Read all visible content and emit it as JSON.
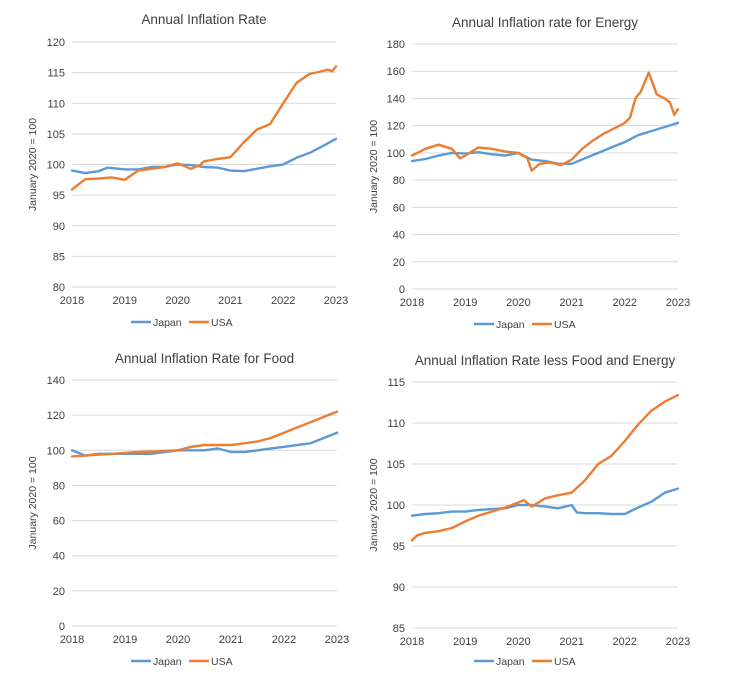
{
  "colors": {
    "japan": "#5b9bd5",
    "usa": "#ed7d31",
    "grid": "#d9d9d9",
    "text": "#404040"
  },
  "chart_data": [
    {
      "type": "line",
      "title": "Annual Inflation Rate",
      "ylabel": "January 2020 = 100",
      "xlabel": "",
      "ylim": [
        80,
        120
      ],
      "yticks": [
        80,
        85,
        90,
        95,
        100,
        105,
        110,
        115,
        120
      ],
      "xlim": [
        2018,
        2023
      ],
      "xticks": [
        "2018",
        "2019",
        "2020",
        "2021",
        "2022",
        "2023"
      ],
      "grid": true,
      "legend": "bottom",
      "series": [
        {
          "name": "Japan",
          "color": "#5b9bd5",
          "x": [
            2018,
            2018.25,
            2018.5,
            2018.67,
            2019,
            2019.25,
            2019.5,
            2019.75,
            2020,
            2020.25,
            2020.5,
            2020.75,
            2021,
            2021.25,
            2021.5,
            2021.75,
            2022,
            2022.25,
            2022.5,
            2022.75,
            2023
          ],
          "y": [
            99,
            98.6,
            98.9,
            99.5,
            99.2,
            99.2,
            99.6,
            99.6,
            100,
            99.9,
            99.6,
            99.5,
            99.0,
            98.9,
            99.3,
            99.7,
            100.0,
            101.1,
            101.9,
            103.0,
            104.2
          ]
        },
        {
          "name": "USA",
          "color": "#ed7d31",
          "x": [
            2018,
            2018.1,
            2018.25,
            2018.5,
            2018.75,
            2019,
            2019.25,
            2019.5,
            2019.75,
            2020,
            2020.25,
            2020.42,
            2020.5,
            2020.75,
            2021,
            2021.25,
            2021.5,
            2021.75,
            2022,
            2022.25,
            2022.5,
            2022.67,
            2022.85,
            2022.92,
            2023
          ],
          "y": [
            95.9,
            96.6,
            97.6,
            97.7,
            97.9,
            97.5,
            99.0,
            99.3,
            99.6,
            100.2,
            99.3,
            99.9,
            100.5,
            100.9,
            101.2,
            103.6,
            105.7,
            106.6,
            110.0,
            113.3,
            114.8,
            115.1,
            115.5,
            115.2,
            116.0
          ]
        }
      ]
    },
    {
      "type": "line",
      "title": "Annual Inflation rate for Energy",
      "ylabel": "January 2020 = 100",
      "xlabel": "",
      "ylim": [
        0,
        180
      ],
      "yticks": [
        0,
        20,
        40,
        60,
        80,
        100,
        120,
        140,
        160,
        180
      ],
      "xlim": [
        2018,
        2023
      ],
      "xticks": [
        "2018",
        "2019",
        "2020",
        "2021",
        "2022",
        "2023"
      ],
      "grid": true,
      "legend": "bottom",
      "series": [
        {
          "name": "Japan",
          "color": "#5b9bd5",
          "x": [
            2018,
            2018.25,
            2018.5,
            2018.75,
            2019,
            2019.25,
            2019.5,
            2019.75,
            2020,
            2020.25,
            2020.5,
            2020.75,
            2021,
            2021.25,
            2021.5,
            2021.75,
            2022,
            2022.25,
            2022.5,
            2022.75,
            2023
          ],
          "y": [
            94,
            95.5,
            98,
            100,
            99.5,
            100.5,
            99,
            98,
            100,
            95,
            94,
            92,
            92,
            96,
            100,
            104,
            108,
            113,
            116,
            119,
            122
          ]
        },
        {
          "name": "USA",
          "color": "#ed7d31",
          "x": [
            2018,
            2018.1,
            2018.25,
            2018.5,
            2018.75,
            2018.9,
            2019,
            2019.25,
            2019.5,
            2019.75,
            2020,
            2020.17,
            2020.25,
            2020.4,
            2020.6,
            2020.8,
            2021,
            2021.2,
            2021.4,
            2021.6,
            2021.8,
            2022,
            2022.1,
            2022.2,
            2022.3,
            2022.45,
            2022.6,
            2022.75,
            2022.85,
            2022.93,
            2023
          ],
          "y": [
            98,
            100,
            103,
            106,
            103,
            96,
            98,
            104,
            103,
            101,
            100,
            96,
            87,
            92,
            93,
            91,
            95,
            103,
            109,
            114,
            118,
            122,
            126,
            140,
            145,
            159,
            143,
            140,
            137,
            128,
            132
          ]
        }
      ]
    },
    {
      "type": "line",
      "title": "Annual Inflation Rate for Food",
      "ylabel": "January 2020 = 100",
      "xlabel": "",
      "ylim": [
        0,
        140
      ],
      "yticks": [
        0,
        20,
        40,
        60,
        80,
        100,
        120,
        140
      ],
      "xlim": [
        2018,
        2023
      ],
      "xticks": [
        "2018",
        "2019",
        "2020",
        "2021",
        "2022",
        "2023"
      ],
      "grid": true,
      "legend": "bottom",
      "series": [
        {
          "name": "Japan",
          "color": "#5b9bd5",
          "x": [
            2018,
            2018.25,
            2018.5,
            2018.75,
            2019,
            2019.25,
            2019.5,
            2019.75,
            2020,
            2020.25,
            2020.5,
            2020.75,
            2021,
            2021.25,
            2021.5,
            2021.75,
            2022,
            2022.25,
            2022.5,
            2022.75,
            2023
          ],
          "y": [
            100,
            97,
            98,
            98,
            98,
            98,
            98,
            99,
            100,
            100,
            100,
            101,
            99,
            99,
            100,
            101,
            102,
            103,
            104,
            107,
            110
          ]
        },
        {
          "name": "USA",
          "color": "#ed7d31",
          "x": [
            2018,
            2018.25,
            2018.5,
            2018.75,
            2019,
            2019.25,
            2019.5,
            2019.75,
            2020,
            2020.25,
            2020.5,
            2020.75,
            2021,
            2021.25,
            2021.5,
            2021.75,
            2022,
            2022.25,
            2022.5,
            2022.75,
            2023
          ],
          "y": [
            96.5,
            97,
            97.5,
            98,
            98.5,
            99,
            99.3,
            99.7,
            100,
            102,
            103,
            103,
            103,
            104,
            105,
            107,
            110,
            113,
            116,
            119,
            122
          ]
        }
      ]
    },
    {
      "type": "line",
      "title": "Annual Inflation Rate less Food and Energy",
      "ylabel": "January 2020 = 100",
      "xlabel": "",
      "ylim": [
        85,
        115
      ],
      "yticks": [
        85,
        90,
        95,
        100,
        105,
        110,
        115
      ],
      "xlim": [
        2018,
        2023
      ],
      "xticks": [
        "2018",
        "2019",
        "2020",
        "2021",
        "2022",
        "2023"
      ],
      "grid": true,
      "legend": "bottom",
      "series": [
        {
          "name": "Japan",
          "color": "#5b9bd5",
          "x": [
            2018,
            2018.25,
            2018.5,
            2018.75,
            2019,
            2019.25,
            2019.5,
            2019.75,
            2020,
            2020.25,
            2020.5,
            2020.75,
            2021,
            2021.1,
            2021.25,
            2021.5,
            2021.75,
            2022,
            2022.25,
            2022.5,
            2022.75,
            2023
          ],
          "y": [
            98.7,
            98.9,
            99.0,
            99.2,
            99.2,
            99.4,
            99.5,
            99.6,
            100,
            100,
            99.8,
            99.6,
            100,
            99.1,
            99.0,
            99.0,
            98.9,
            98.9,
            99.7,
            100.4,
            101.5,
            102.0
          ]
        },
        {
          "name": "USA",
          "color": "#ed7d31",
          "x": [
            2018,
            2018.1,
            2018.25,
            2018.5,
            2018.75,
            2019,
            2019.25,
            2019.5,
            2019.75,
            2020,
            2020.1,
            2020.25,
            2020.5,
            2020.75,
            2021,
            2021.25,
            2021.5,
            2021.75,
            2022,
            2022.25,
            2022.5,
            2022.75,
            2023
          ],
          "y": [
            95.7,
            96.3,
            96.6,
            96.8,
            97.2,
            98.0,
            98.7,
            99.2,
            99.7,
            100.3,
            100.6,
            99.8,
            100.8,
            101.2,
            101.5,
            103.0,
            105.0,
            106.0,
            107.8,
            109.8,
            111.5,
            112.6,
            113.4
          ]
        }
      ]
    }
  ]
}
